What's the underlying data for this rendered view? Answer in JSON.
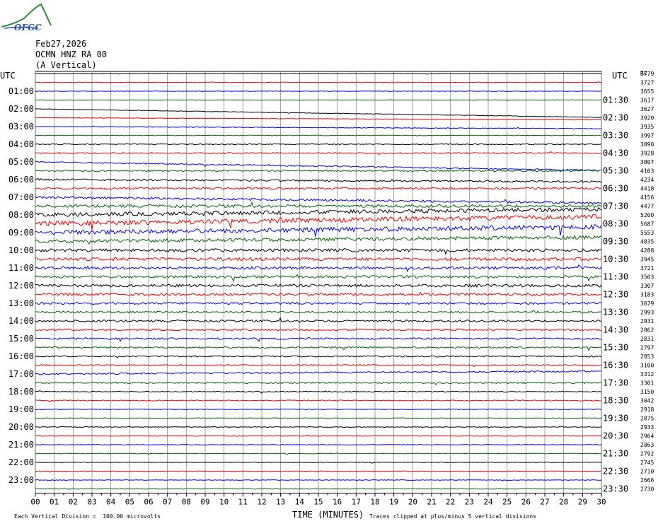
{
  "logo": {
    "text": "OFGC"
  },
  "header": {
    "date": "Feb27,2026",
    "station": "OCMN HNZ RA 00",
    "component": "(A Vertical)"
  },
  "utc_label_left": "UTC",
  "utc_label_right": "UTC",
  "right_header": "RC",
  "footer": {
    "left": "Each Vertical Division =  100.00 microvolts",
    "center": "TIME (MINUTES)",
    "right": "Traces clipped at plus/minus 5 vertical divisions"
  },
  "colors": {
    "black": "#000000",
    "red": "#ee0000",
    "blue": "#0000ee",
    "green": "#006600",
    "grid": "#888888"
  },
  "chart_data": {
    "type": "line",
    "title": "",
    "xlabel": "TIME (MINUTES)",
    "ylabel": "",
    "xlim": [
      0,
      30
    ],
    "x_ticks": [
      "00",
      "01",
      "02",
      "03",
      "04",
      "05",
      "06",
      "07",
      "08",
      "09",
      "10",
      "11",
      "12",
      "13",
      "14",
      "15",
      "16",
      "17",
      "18",
      "19",
      "20",
      "21",
      "22",
      "23",
      "24",
      "25",
      "26",
      "27",
      "28",
      "29",
      "30"
    ],
    "left_hour_labels": [
      "01:00",
      "02:00",
      "03:00",
      "04:00",
      "05:00",
      "06:00",
      "07:00",
      "08:00",
      "09:00",
      "10:00",
      "11:00",
      "12:00",
      "13:00",
      "14:00",
      "15:00",
      "16:00",
      "17:00",
      "18:00",
      "19:00",
      "20:00",
      "21:00",
      "22:00",
      "23:00"
    ],
    "right_hour_labels": [
      "01:30",
      "02:30",
      "03:30",
      "04:30",
      "05:30",
      "06:30",
      "07:30",
      "08:30",
      "09:30",
      "10:30",
      "11:30",
      "12:30",
      "13:30",
      "14:30",
      "15:30",
      "16:30",
      "17:30",
      "18:30",
      "19:30",
      "20:30",
      "21:30",
      "22:30",
      "23:30"
    ],
    "trace_colors": [
      "black",
      "red",
      "blue",
      "green"
    ],
    "trace_count": 48,
    "rc_values": [
      "3779",
      "3727",
      "3655",
      "3617",
      "3627",
      "3920",
      "3935",
      "3997",
      "3890",
      "3928",
      "3807",
      "4103",
      "4234",
      "4418",
      "4156",
      "4477",
      "5200",
      "5687",
      "5553",
      "4835",
      "4288",
      "3945",
      "3721",
      "3503",
      "3307",
      "3183",
      "3079",
      "2993",
      "2931",
      "2862",
      "2831",
      "2797",
      "2853",
      "3100",
      "3312",
      "3301",
      "3150",
      "3042",
      "2918",
      "2875",
      "2933",
      "2964",
      "2863",
      "2792",
      "2745",
      "2710",
      "2666",
      "2730"
    ],
    "activity": [
      0.4,
      0.4,
      0.3,
      0.3,
      0.3,
      0.3,
      0.4,
      0.4,
      0.6,
      0.8,
      0.8,
      1.0,
      1.2,
      1.3,
      1.5,
      1.8,
      2.5,
      3.0,
      3.0,
      2.2,
      2.0,
      2.0,
      1.7,
      1.6,
      1.8,
      1.6,
      1.4,
      1.3,
      1.3,
      1.2,
      1.1,
      1.0,
      0.9,
      0.8,
      1.0,
      0.9,
      0.6,
      0.6,
      0.5,
      0.5,
      0.5,
      0.5,
      0.4,
      0.4,
      0.4,
      0.4,
      0.4,
      0.4
    ],
    "drift_end": [
      0,
      0,
      0,
      0,
      12,
      3,
      3,
      0,
      0,
      0,
      12,
      0,
      3,
      0,
      8,
      0,
      -8,
      -10,
      -8,
      -6,
      0,
      0,
      0,
      0,
      0,
      0,
      0,
      0,
      0,
      0,
      0,
      0,
      0,
      0,
      -4,
      0,
      0,
      0,
      0,
      0,
      0,
      0,
      0,
      0,
      0,
      0,
      0,
      0
    ]
  }
}
